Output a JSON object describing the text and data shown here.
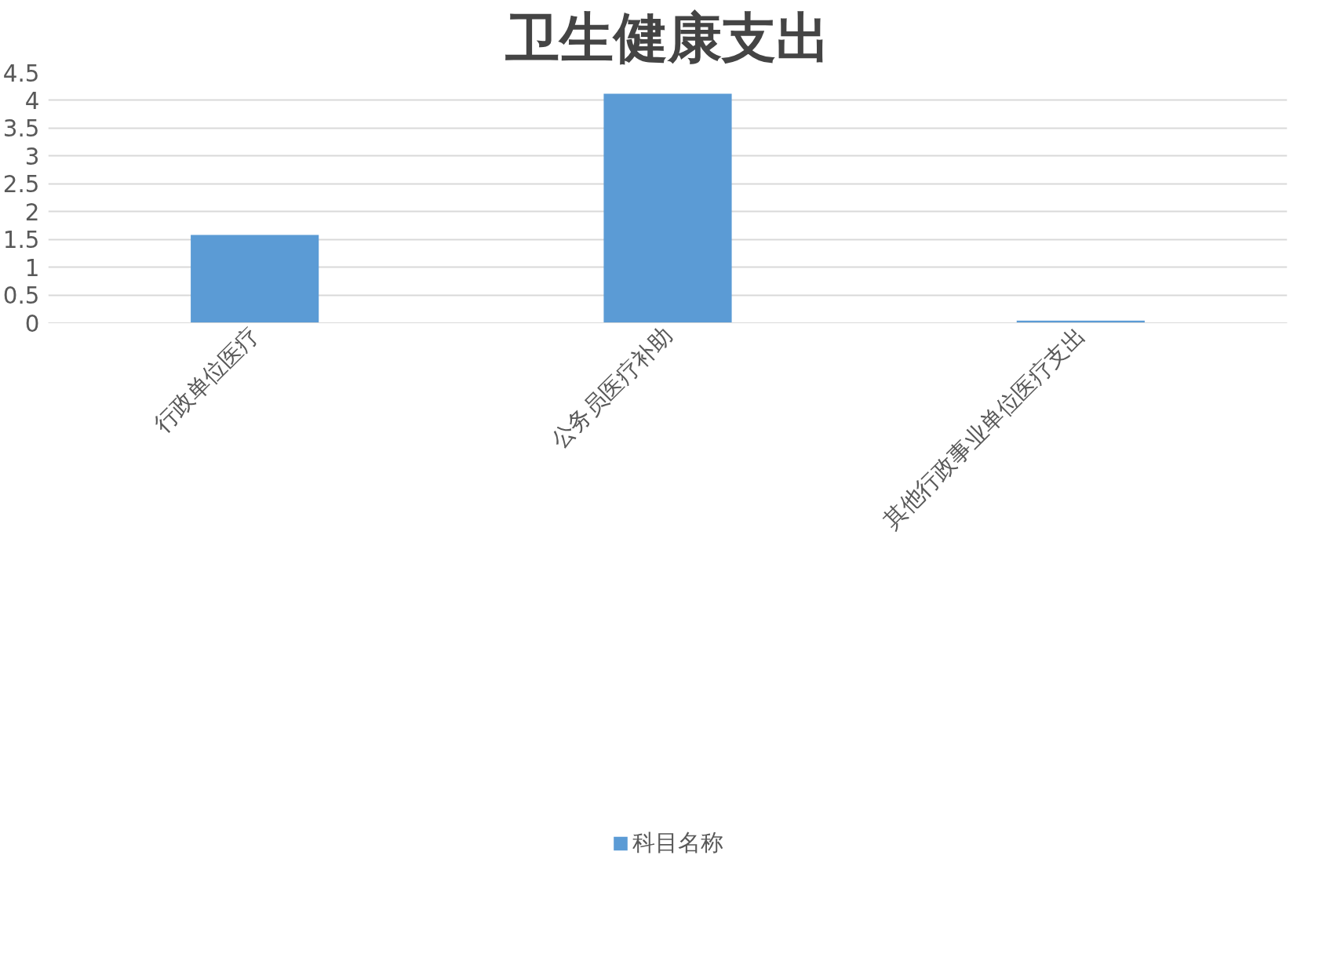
{
  "chart_data": {
    "type": "bar",
    "title": "卫生健康支出",
    "categories": [
      "行政单位医疗",
      "公务员医疗补助",
      "其他行政事业单位医疗支出"
    ],
    "series": [
      {
        "name": "科目名称",
        "color": "#5b9bd5",
        "values": [
          1.58,
          4.12,
          0.04
        ]
      }
    ],
    "ylim": [
      0,
      4.5
    ],
    "yticks": [
      0,
      0.5,
      1,
      1.5,
      2,
      2.5,
      3,
      3.5,
      4,
      4.5
    ],
    "grid": "y",
    "legend": "bottom"
  }
}
